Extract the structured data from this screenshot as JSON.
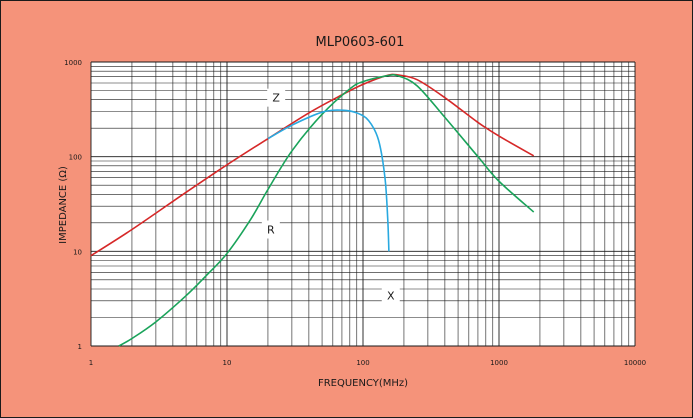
{
  "colors": {
    "background": "#f5937a",
    "plot_area": "#ffffff",
    "grid": "#1a1a1a",
    "z_curve": "#d62828",
    "r_curve": "#1aa35a",
    "x_curve": "#29a9e0"
  },
  "chart_data": {
    "type": "line",
    "title": "MLP0603-601",
    "xlabel": "FREQUENCY(MHz)",
    "ylabel": "IMPEDANCE (Ω)",
    "xscale": "log",
    "yscale": "log",
    "xlim": [
      1,
      10000
    ],
    "ylim": [
      1,
      1000
    ],
    "grid": true,
    "x_ticks": [
      "1",
      "10",
      "100",
      "1000",
      "10000"
    ],
    "y_ticks": [
      "1000",
      "100",
      "10",
      "1"
    ],
    "series": [
      {
        "name": "Z",
        "color": "#d62828",
        "x": [
          1,
          2,
          5,
          10,
          20,
          40,
          70,
          100,
          150,
          180,
          250,
          400,
          700,
          1000,
          1800
        ],
        "y": [
          9,
          17,
          42,
          82,
          155,
          290,
          450,
          580,
          720,
          730,
          650,
          420,
          230,
          165,
          102
        ]
      },
      {
        "name": "R",
        "color": "#1aa35a",
        "x": [
          1.6,
          2,
          3,
          5,
          7,
          10,
          15,
          20,
          30,
          50,
          80,
          100,
          150,
          180,
          250,
          400,
          700,
          1000,
          1800
        ],
        "y": [
          1,
          1.2,
          1.8,
          3.4,
          5.5,
          9.5,
          22,
          45,
          115,
          280,
          520,
          620,
          715,
          715,
          560,
          260,
          100,
          55,
          26
        ]
      },
      {
        "name": "X",
        "color": "#29a9e0",
        "x": [
          20,
          30,
          50,
          70,
          90,
          110,
          130,
          145,
          152,
          155
        ],
        "y": [
          155,
          215,
          295,
          310,
          290,
          240,
          150,
          60,
          22,
          10
        ]
      }
    ],
    "annotations": [
      {
        "text": "Z",
        "x": 23,
        "y": 420
      },
      {
        "text": "R",
        "x": 21,
        "y": 17
      },
      {
        "text": "X",
        "x": 160,
        "y": 3.4
      }
    ]
  }
}
